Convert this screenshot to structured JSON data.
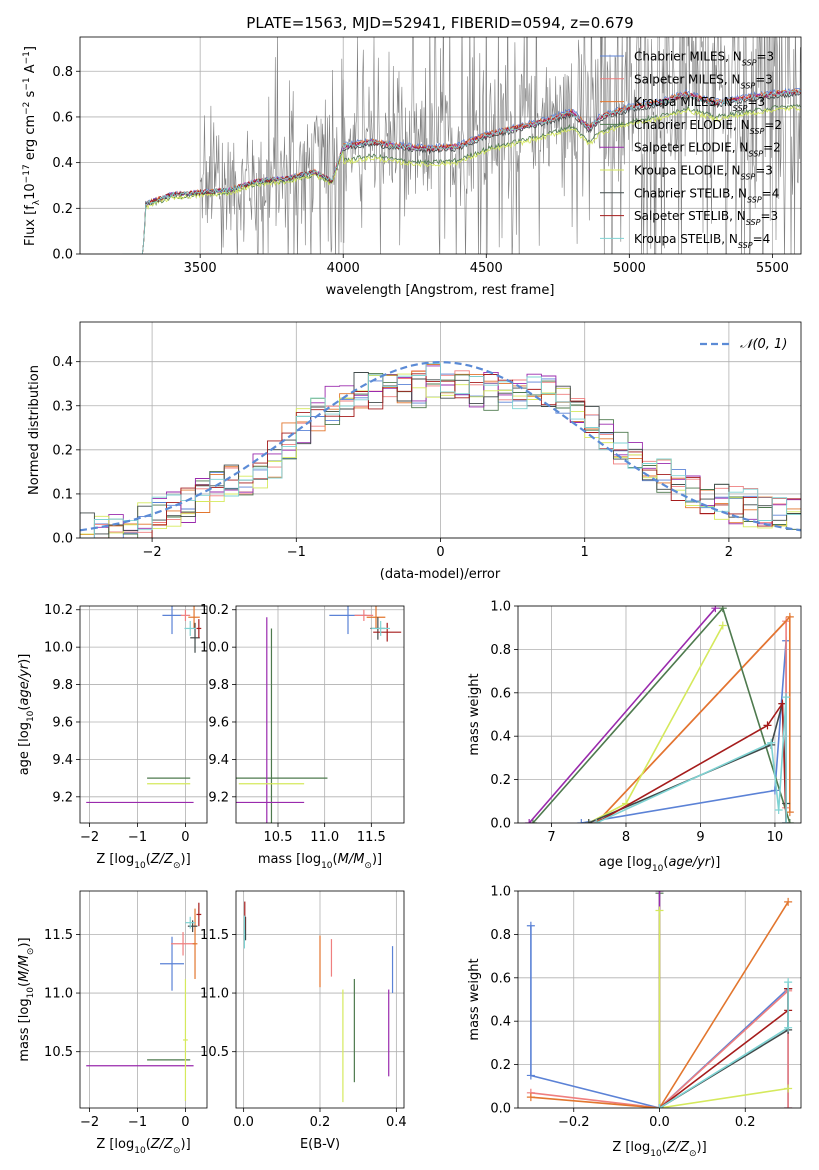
{
  "figure_title": "PLATE=1563, MJD=52941, FIBERID=0594, z=0.679",
  "colors": {
    "chabrier_miles": "#5b82d6",
    "salpeter_miles": "#ef7f7f",
    "kroupa_miles": "#e2762e",
    "chabrier_elodie": "#4e7a4e",
    "salpeter_elodie": "#9a2aad",
    "kroupa_elodie": "#d5e95c",
    "chabrier_stelib": "#404a4a",
    "salpeter_stelib": "#a51c1c",
    "kroupa_stelib": "#7fd3d3",
    "data_spectrum": "#7f7f7f",
    "normal_curve": "#5b8bd6"
  },
  "legend_spectrum": [
    {
      "lib": "Chabrier MILES",
      "n": "3",
      "color": "#5b82d6"
    },
    {
      "lib": "Salpeter MILES",
      "n": "3",
      "color": "#ef7f7f"
    },
    {
      "lib": "Kroupa MILES",
      "n": "3",
      "color": "#e2762e"
    },
    {
      "lib": "Chabrier ELODIE",
      "n": "2",
      "color": "#4e7a4e"
    },
    {
      "lib": "Salpeter ELODIE",
      "n": "2",
      "color": "#9a2aad"
    },
    {
      "lib": "Kroupa ELODIE",
      "n": "3",
      "color": "#d5e95c"
    },
    {
      "lib": "Chabrier STELIB",
      "n": "4",
      "color": "#404a4a"
    },
    {
      "lib": "Salpeter STELIB",
      "n": "3",
      "color": "#a51c1c"
    },
    {
      "lib": "Kroupa STELIB",
      "n": "4",
      "color": "#7fd3d3"
    }
  ],
  "chart_data": [
    {
      "type": "line",
      "id": "spectrum",
      "xlabel": "wavelength [Angstrom, rest frame]",
      "ylabel_parts": [
        "Flux [f",
        "λ",
        "10",
        "−17",
        " erg cm",
        "−2",
        " s",
        "−1",
        " A",
        "−1",
        "]"
      ],
      "xlim": [
        3080,
        5600
      ],
      "ylim": [
        0,
        0.95
      ],
      "xticks": [
        3500,
        4000,
        4500,
        5000,
        5500
      ],
      "yticks": [
        0.0,
        0.2,
        0.4,
        0.6,
        0.8
      ],
      "grid": true,
      "legend_position": "upper right",
      "model_anchor": {
        "x": [
          3230,
          3300,
          3310,
          3400,
          3500,
          3600,
          3700,
          3800,
          3900,
          3960,
          4000,
          4100,
          4200,
          4300,
          4400,
          4500,
          4600,
          4700,
          4800,
          4860,
          4900,
          5000,
          5100,
          5200,
          5300,
          5400,
          5500,
          5600
        ],
        "y": [
          0.0,
          0.0,
          0.22,
          0.26,
          0.27,
          0.28,
          0.32,
          0.33,
          0.36,
          0.32,
          0.47,
          0.49,
          0.47,
          0.46,
          0.47,
          0.52,
          0.55,
          0.58,
          0.62,
          0.55,
          0.6,
          0.64,
          0.66,
          0.7,
          0.66,
          0.68,
          0.7,
          0.71
        ]
      },
      "data_anchor": {
        "x": [
          3500,
          3800,
          4000,
          4300,
          4500,
          4800,
          5000,
          5200,
          5400,
          5600
        ],
        "y": [
          0.27,
          0.33,
          0.47,
          0.46,
          0.52,
          0.62,
          0.64,
          0.7,
          0.68,
          0.71
        ],
        "noise": [
          0.35,
          0.45,
          0.3,
          0.45,
          0.5,
          0.4,
          0.6,
          0.7,
          0.8,
          0.85
        ]
      }
    },
    {
      "type": "bar",
      "id": "residuals",
      "xlabel": "(data-model)/error",
      "ylabel": "Normed distribution",
      "xlim": [
        -2.5,
        2.5
      ],
      "ylim": [
        0,
        0.49
      ],
      "xticks": [
        -2,
        -1,
        0,
        1,
        2
      ],
      "yticks": [
        0.0,
        0.1,
        0.2,
        0.3,
        0.4
      ],
      "grid": true,
      "legend": "𝒩(0, 1)",
      "legend_position": "upper right",
      "bin_width": 0.1,
      "envelope": {
        "x": [
          -2.5,
          -2.0,
          -1.6,
          -1.2,
          -1.0,
          -0.8,
          -0.6,
          -0.4,
          -0.2,
          0.0,
          0.2,
          0.4,
          0.6,
          0.8,
          1.0,
          1.2,
          1.5,
          1.8,
          2.1,
          2.5
        ],
        "y": [
          0.01,
          0.04,
          0.1,
          0.16,
          0.24,
          0.29,
          0.33,
          0.34,
          0.33,
          0.36,
          0.34,
          0.33,
          0.33,
          0.33,
          0.27,
          0.22,
          0.15,
          0.1,
          0.07,
          0.06
        ]
      }
    },
    {
      "type": "scatter",
      "id": "age_vs_Z",
      "xlabel": "Z [log10(Z/Z⊙)]",
      "ylabel": "age  [log10(age/yr)]",
      "xlim": [
        -2.2,
        0.45
      ],
      "ylim": [
        9.06,
        10.22
      ],
      "xticks": [
        -2,
        -1,
        0
      ],
      "yticks": [
        9.2,
        9.4,
        9.6,
        9.8,
        10.0,
        10.2
      ],
      "grid": true,
      "points": [
        {
          "s": "chabrier_miles",
          "x": -0.28,
          "y": 10.17,
          "xerr": 0.2,
          "yerr": 0.1
        },
        {
          "s": "salpeter_miles",
          "x": 0.0,
          "y": 10.17,
          "xerr": 0.1,
          "yerr": 0.03
        },
        {
          "s": "kroupa_miles",
          "x": 0.18,
          "y": 10.16,
          "xerr": 0.12,
          "yerr": 0.06
        },
        {
          "s": "chabrier_elodie",
          "x": -0.35,
          "y": 9.3,
          "xerr": 0.45,
          "yerr": 0.0
        },
        {
          "s": "salpeter_elodie",
          "x": -0.95,
          "y": 9.17,
          "xerr": 1.12,
          "yerr": 0.0
        },
        {
          "s": "kroupa_elodie",
          "x": -0.35,
          "y": 9.27,
          "xerr": 0.45,
          "yerr": 0.0
        },
        {
          "s": "chabrier_stelib",
          "x": 0.2,
          "y": 10.05,
          "xerr": 0.1,
          "yerr": 0.08
        },
        {
          "s": "salpeter_stelib",
          "x": 0.28,
          "y": 10.1,
          "xerr": 0.05,
          "yerr": 0.05
        },
        {
          "s": "kroupa_stelib",
          "x": 0.1,
          "y": 10.1,
          "xerr": 0.12,
          "yerr": 0.04
        }
      ]
    },
    {
      "type": "scatter",
      "id": "age_vs_mass",
      "xlabel": "mass [log10(M/M⊙)]",
      "ylabel": "",
      "xlim": [
        10.05,
        11.85
      ],
      "ylim": [
        9.06,
        10.22
      ],
      "xticks": [
        10.5,
        11.0,
        11.5
      ],
      "yticks": [
        9.2,
        9.4,
        9.6,
        9.8,
        10.0,
        10.2
      ],
      "grid": true,
      "points": [
        {
          "s": "chabrier_miles",
          "x": 11.25,
          "y": 10.17,
          "xerr": 0.2,
          "yerr": 0.1
        },
        {
          "s": "salpeter_miles",
          "x": 11.42,
          "y": 10.17,
          "xerr": 0.1,
          "yerr": 0.03
        },
        {
          "s": "kroupa_miles",
          "x": 11.55,
          "y": 10.16,
          "xerr": 0.1,
          "yerr": 0.06
        },
        {
          "s": "chabrier_elodie",
          "x": 10.43,
          "y": 9.3,
          "xerr": 0.6,
          "yerr": 0.8
        },
        {
          "s": "salpeter_elodie",
          "x": 10.38,
          "y": 9.17,
          "xerr": 0.4,
          "yerr": 0.99
        },
        {
          "s": "kroupa_elodie",
          "x": 10.43,
          "y": 9.27,
          "xerr": 0.35,
          "yerr": 0.0
        },
        {
          "s": "chabrier_stelib",
          "x": 11.57,
          "y": 10.1,
          "xerr": 0.08,
          "yerr": 0.06
        },
        {
          "s": "salpeter_stelib",
          "x": 11.67,
          "y": 10.08,
          "xerr": 0.15,
          "yerr": 0.05
        },
        {
          "s": "kroupa_stelib",
          "x": 11.6,
          "y": 10.1,
          "xerr": 0.1,
          "yerr": 0.04
        }
      ]
    },
    {
      "type": "line",
      "id": "weight_vs_age",
      "xlabel": "age  [log10(age/yr)]",
      "ylabel": "mass weight",
      "xlim": [
        6.55,
        10.35
      ],
      "ylim": [
        0,
        1.0
      ],
      "xticks": [
        7,
        8,
        9,
        10
      ],
      "yticks": [
        0.0,
        0.2,
        0.4,
        0.6,
        0.8,
        1.0
      ],
      "grid": true,
      "series": [
        {
          "s": "chabrier_miles",
          "x": [
            7.4,
            10.0,
            10.15,
            10.15
          ],
          "y": [
            0.0,
            0.15,
            0.84,
            0.0
          ]
        },
        {
          "s": "salpeter_miles",
          "x": [
            7.6,
            10.15,
            10.15
          ],
          "y": [
            0.0,
            0.93,
            0.07
          ]
        },
        {
          "s": "kroupa_miles",
          "x": [
            7.6,
            10.2,
            10.2
          ],
          "y": [
            0.0,
            0.95,
            0.05
          ]
        },
        {
          "s": "chabrier_elodie",
          "x": [
            6.75,
            9.3,
            10.2
          ],
          "y": [
            0.0,
            0.99,
            0.0
          ]
        },
        {
          "s": "salpeter_elodie",
          "x": [
            6.7,
            9.2
          ],
          "y": [
            0.0,
            0.99
          ]
        },
        {
          "s": "kroupa_elodie",
          "x": [
            7.5,
            8.0,
            9.3
          ],
          "y": [
            0.0,
            0.09,
            0.91
          ]
        },
        {
          "s": "chabrier_stelib",
          "x": [
            7.5,
            9.95,
            10.1,
            10.15
          ],
          "y": [
            0.0,
            0.36,
            0.55,
            0.09
          ]
        },
        {
          "s": "salpeter_stelib",
          "x": [
            7.6,
            9.9,
            10.1,
            10.15
          ],
          "y": [
            0.0,
            0.45,
            0.55,
            0.0
          ]
        },
        {
          "s": "kroupa_stelib",
          "x": [
            7.6,
            9.95,
            10.05,
            10.15,
            10.15
          ],
          "y": [
            0.0,
            0.37,
            0.06,
            0.58,
            0.0
          ]
        }
      ]
    },
    {
      "type": "scatter",
      "id": "mass_vs_Z",
      "xlabel": "Z [log10(Z/Z⊙)]",
      "ylabel": "mass [log10(M/M⊙)]",
      "xlim": [
        -2.2,
        0.45
      ],
      "ylim": [
        10.02,
        11.87
      ],
      "xticks": [
        -2,
        -1,
        0
      ],
      "yticks": [
        10.5,
        11.0,
        11.5
      ],
      "grid": true,
      "points": [
        {
          "s": "chabrier_miles",
          "x": -0.28,
          "y": 11.25,
          "xerr": 0.25,
          "yerr": 0.23
        },
        {
          "s": "salpeter_miles",
          "x": -0.05,
          "y": 11.42,
          "xerr": 0.25,
          "yerr": 0.1
        },
        {
          "s": "kroupa_miles",
          "x": 0.2,
          "y": 11.42,
          "xerr": 0.05,
          "yerr": 0.3
        },
        {
          "s": "chabrier_elodie",
          "x": -0.35,
          "y": 10.43,
          "xerr": 0.45,
          "yerr": 0.0
        },
        {
          "s": "salpeter_elodie",
          "x": -0.95,
          "y": 10.38,
          "xerr": 1.12,
          "yerr": 0.0
        },
        {
          "s": "kroupa_elodie",
          "x": 0.0,
          "y": 10.6,
          "xerr": 0.05,
          "yerr": 0.52
        },
        {
          "s": "chabrier_stelib",
          "x": 0.15,
          "y": 11.57,
          "xerr": 0.1,
          "yerr": 0.05
        },
        {
          "s": "salpeter_stelib",
          "x": 0.28,
          "y": 11.67,
          "xerr": 0.05,
          "yerr": 0.1
        },
        {
          "s": "kroupa_stelib",
          "x": 0.1,
          "y": 11.6,
          "xerr": 0.1,
          "yerr": 0.05
        }
      ]
    },
    {
      "type": "scatter",
      "id": "mass_vs_ebv",
      "xlabel": "E(B-V)",
      "ylabel": "",
      "xlim": [
        -0.02,
        0.42
      ],
      "ylim": [
        10.02,
        11.87
      ],
      "xticks": [
        0.0,
        0.2,
        0.4
      ],
      "yticks": [
        10.5,
        11.0,
        11.5
      ],
      "grid": true,
      "points": [
        {
          "s": "chabrier_miles",
          "x": 0.39,
          "y": 11.2,
          "xerr": 0.0,
          "yerr": 0.2
        },
        {
          "s": "salpeter_miles",
          "x": 0.23,
          "y": 11.3,
          "xerr": 0.0,
          "yerr": 0.16
        },
        {
          "s": "kroupa_miles",
          "x": 0.2,
          "y": 11.27,
          "xerr": 0.0,
          "yerr": 0.22
        },
        {
          "s": "chabrier_elodie",
          "x": 0.29,
          "y": 10.68,
          "xerr": 0.0,
          "yerr": 0.44
        },
        {
          "s": "salpeter_elodie",
          "x": 0.38,
          "y": 10.66,
          "xerr": 0.0,
          "yerr": 0.37
        },
        {
          "s": "kroupa_elodie",
          "x": 0.26,
          "y": 10.55,
          "xerr": 0.0,
          "yerr": 0.48
        },
        {
          "s": "chabrier_stelib",
          "x": 0.005,
          "y": 11.55,
          "xerr": 0.0,
          "yerr": 0.1
        },
        {
          "s": "salpeter_stelib",
          "x": 0.003,
          "y": 11.66,
          "xerr": 0.0,
          "yerr": 0.12
        },
        {
          "s": "kroupa_stelib",
          "x": 0.002,
          "y": 11.52,
          "xerr": 0.0,
          "yerr": 0.14
        }
      ]
    },
    {
      "type": "line",
      "id": "weight_vs_Z",
      "xlabel": "Z [log10(Z/Z⊙)]",
      "ylabel": "mass weight",
      "xlim": [
        -0.33,
        0.33
      ],
      "ylim": [
        0,
        1.0
      ],
      "xticks": [
        -0.2,
        0.0,
        0.2
      ],
      "yticks": [
        0.0,
        0.2,
        0.4,
        0.6,
        0.8,
        1.0
      ],
      "grid": true,
      "series": [
        {
          "s": "chabrier_miles",
          "x": [
            -0.3,
            -0.3,
            0.0,
            0.3,
            0.3
          ],
          "y": [
            0.84,
            0.15,
            0.0,
            0.55,
            0.0
          ]
        },
        {
          "s": "salpeter_miles",
          "x": [
            -0.3,
            0.0,
            0.3,
            0.3
          ],
          "y": [
            0.07,
            0.0,
            0.54,
            0.0
          ]
        },
        {
          "s": "kroupa_miles",
          "x": [
            -0.3,
            0.0,
            0.3
          ],
          "y": [
            0.05,
            0.0,
            0.95
          ]
        },
        {
          "s": "chabrier_elodie",
          "x": [
            0.0,
            0.0
          ],
          "y": [
            0.0,
            0.99
          ]
        },
        {
          "s": "salpeter_elodie",
          "x": [
            0.0,
            0.0
          ],
          "y": [
            0.0,
            1.0
          ]
        },
        {
          "s": "kroupa_elodie",
          "x": [
            0.0,
            0.0,
            0.3
          ],
          "y": [
            0.91,
            0.0,
            0.09
          ]
        },
        {
          "s": "chabrier_stelib",
          "x": [
            0.0,
            0.3,
            0.3
          ],
          "y": [
            0.0,
            0.36,
            0.55
          ]
        },
        {
          "s": "salpeter_stelib",
          "x": [
            0.0,
            0.3,
            0.3
          ],
          "y": [
            0.0,
            0.45,
            0.55
          ]
        },
        {
          "s": "kroupa_stelib",
          "x": [
            0.0,
            0.3,
            0.3
          ],
          "y": [
            0.0,
            0.37,
            0.58
          ]
        }
      ]
    }
  ]
}
